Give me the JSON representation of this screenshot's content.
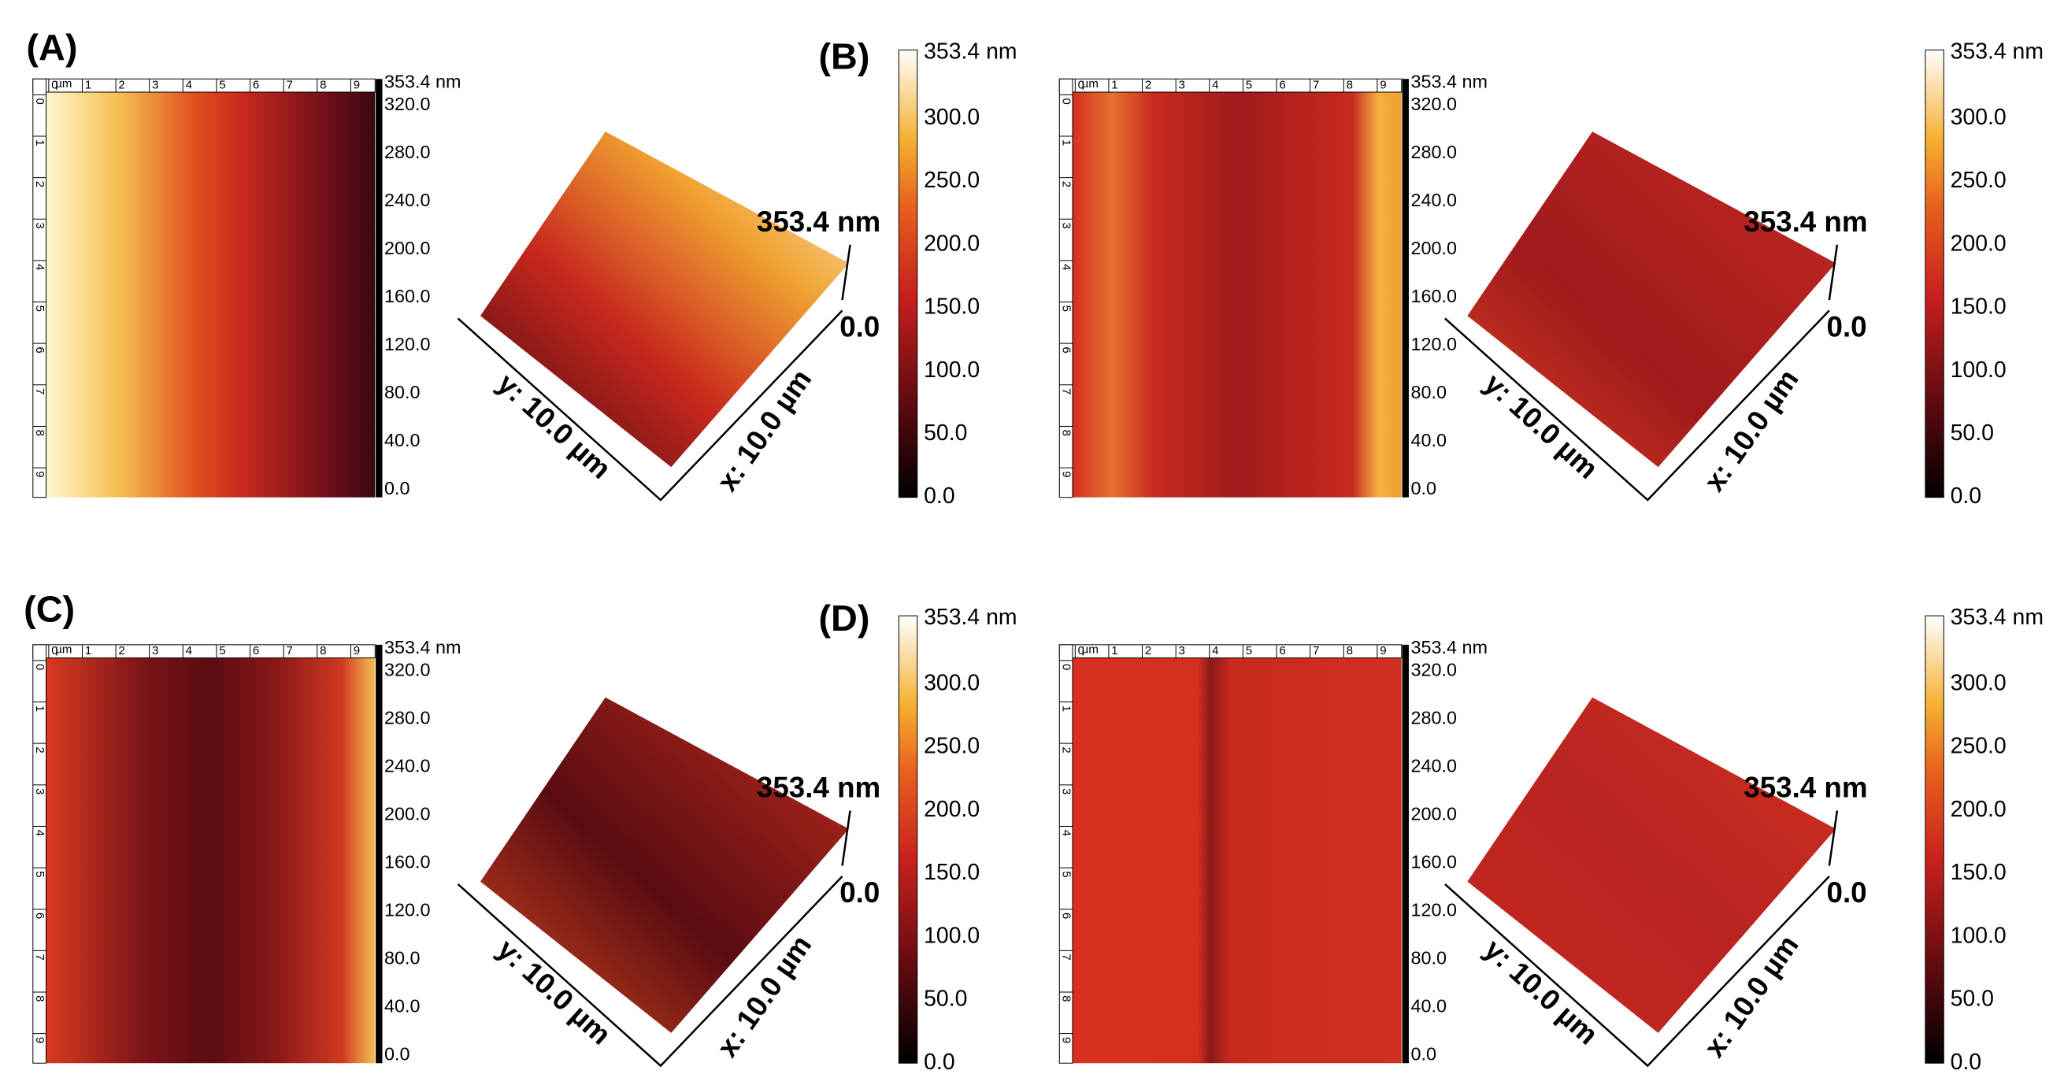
{
  "panels": [
    {
      "label": "(A)",
      "ruler": {
        "unit": "µm",
        "ticks": [
          "0",
          "1",
          "2",
          "3",
          "4",
          "5",
          "6",
          "7",
          "8",
          "9"
        ]
      },
      "map_scale": [
        "353.4 nm",
        "320.0",
        "280.0",
        "240.0",
        "200.0",
        "160.0",
        "120.0",
        "80.0",
        "40.0",
        "0.0"
      ],
      "surface": {
        "z_max": "353.4 nm",
        "z_min": "0.0",
        "y_axis": "y: 10.0 µm",
        "x_axis": "x: 10.0 µm"
      },
      "color_scale": [
        "353.4 nm",
        "300.0",
        "250.0",
        "200.0",
        "150.0",
        "100.0",
        "50.0",
        "0.0"
      ]
    },
    {
      "label": "(B)",
      "ruler": {
        "unit": "µm",
        "ticks": [
          "0",
          "1",
          "2",
          "3",
          "4",
          "5",
          "6",
          "7",
          "8",
          "9"
        ]
      },
      "map_scale": [
        "353.4 nm",
        "320.0",
        "280.0",
        "240.0",
        "200.0",
        "160.0",
        "120.0",
        "80.0",
        "40.0",
        "0.0"
      ],
      "surface": {
        "z_max": "353.4 nm",
        "z_min": "0.0",
        "y_axis": "y: 10.0 µm",
        "x_axis": "x: 10.0 µm"
      },
      "color_scale": [
        "353.4 nm",
        "300.0",
        "250.0",
        "200.0",
        "150.0",
        "100.0",
        "50.0",
        "0.0"
      ]
    },
    {
      "label": "(C)",
      "ruler": {
        "unit": "µm",
        "ticks": [
          "0",
          "1",
          "2",
          "3",
          "4",
          "5",
          "6",
          "7",
          "8",
          "9"
        ]
      },
      "map_scale": [
        "353.4 nm",
        "320.0",
        "280.0",
        "240.0",
        "200.0",
        "160.0",
        "120.0",
        "80.0",
        "40.0",
        "0.0"
      ],
      "surface": {
        "z_max": "353.4 nm",
        "z_min": "0.0",
        "y_axis": "y: 10.0 µm",
        "x_axis": "x: 10.0 µm"
      },
      "color_scale": [
        "353.4 nm",
        "300.0",
        "250.0",
        "200.0",
        "150.0",
        "100.0",
        "50.0",
        "0.0"
      ]
    },
    {
      "label": "(D)",
      "ruler": {
        "unit": "µm",
        "ticks": [
          "0",
          "1",
          "2",
          "3",
          "4",
          "5",
          "6",
          "7",
          "8",
          "9"
        ]
      },
      "map_scale": [
        "353.4 nm",
        "320.0",
        "280.0",
        "240.0",
        "200.0",
        "160.0",
        "120.0",
        "80.0",
        "40.0",
        "0.0"
      ],
      "surface": {
        "z_max": "353.4 nm",
        "z_min": "0.0",
        "y_axis": "y: 10.0 µm",
        "x_axis": "x: 10.0 µm"
      },
      "color_scale": [
        "353.4 nm",
        "300.0",
        "250.0",
        "200.0",
        "150.0",
        "100.0",
        "50.0",
        "0.0"
      ]
    }
  ]
}
